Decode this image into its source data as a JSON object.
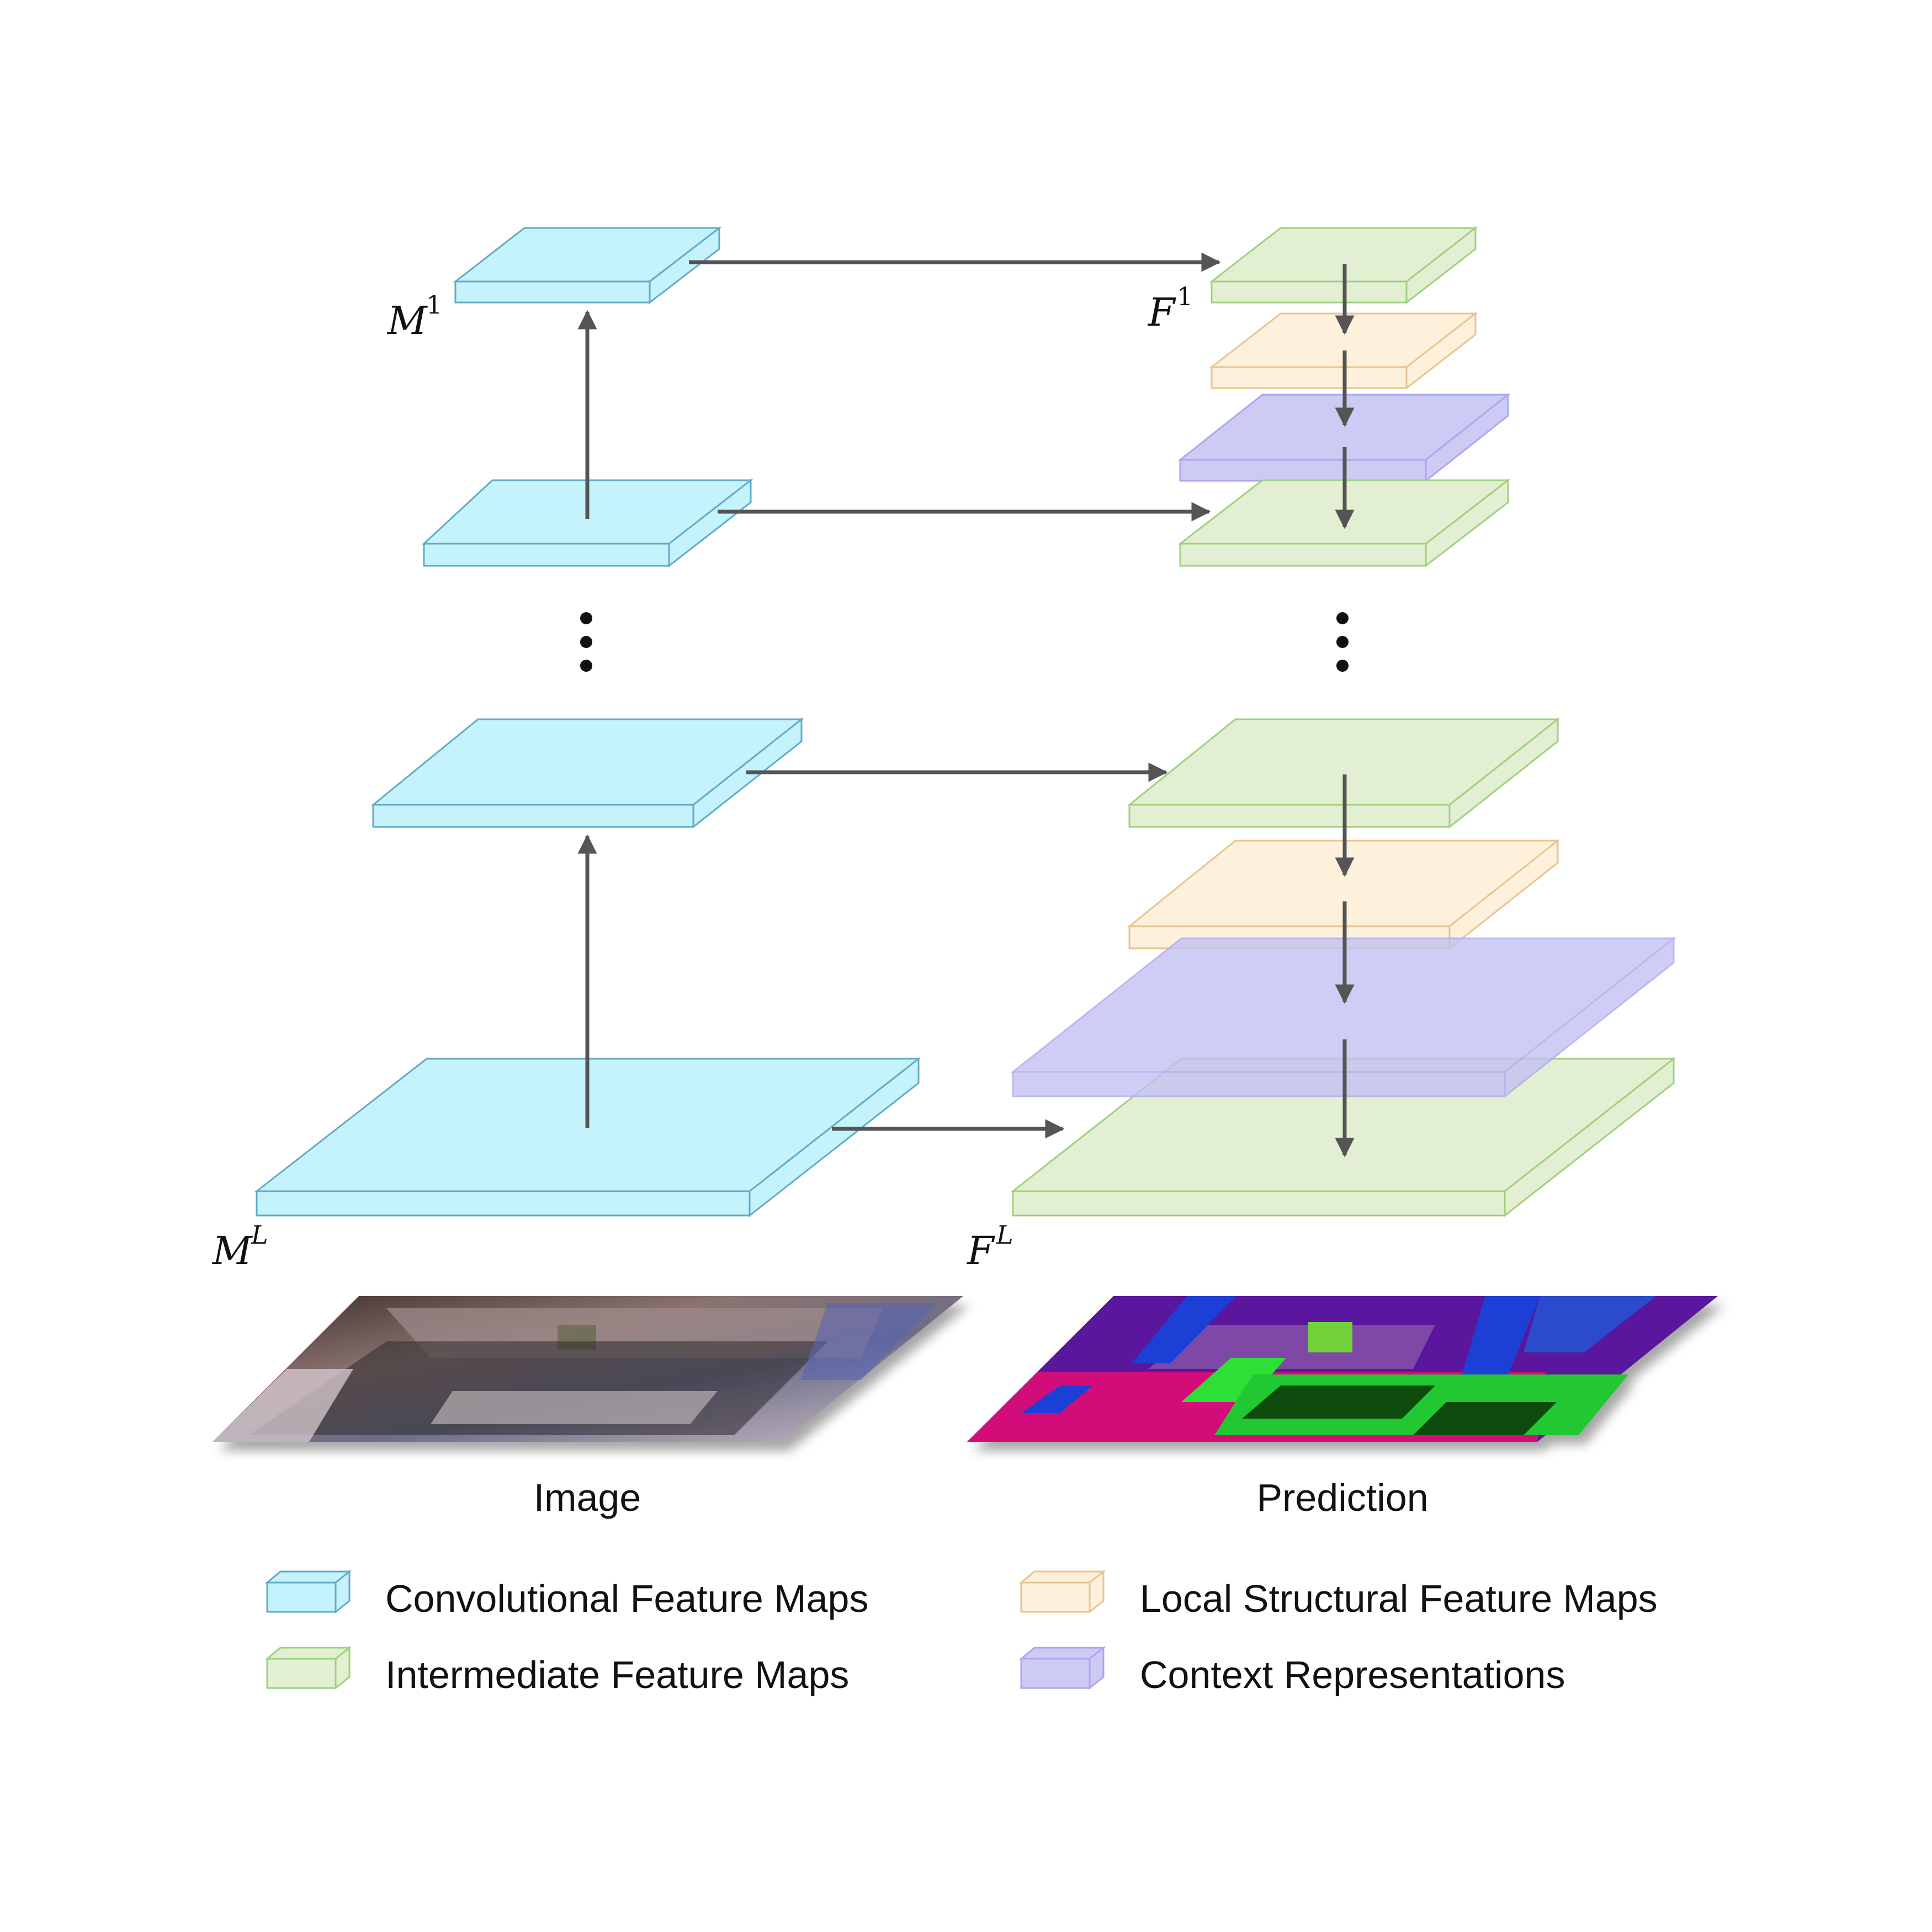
{
  "colors": {
    "conv": "#c5f3fb",
    "conv_edge": "#62aac6",
    "inter": "#e3efd2",
    "inter_edge": "#9fd07c",
    "local": "#fdf1dc",
    "local_edge": "#e8c48f",
    "context": "#cccbf4",
    "context_edge": "#a9a7ee",
    "arrow": "#555555"
  },
  "labels": {
    "m1_base": "M",
    "m1_sup": "1",
    "ml_base": "M",
    "ml_sup": "L",
    "f1_base": "F",
    "f1_sup": "1",
    "fl_base": "F",
    "fl_sup": "L"
  },
  "captions": {
    "image": "Image",
    "prediction": "Prediction"
  },
  "legend": [
    {
      "key": "conv",
      "label": "Convolutional Feature Maps"
    },
    {
      "key": "local",
      "label": "Local Structural Feature Maps"
    },
    {
      "key": "inter",
      "label": "Intermediate Feature Maps"
    },
    {
      "key": "context",
      "label": "Context Representations"
    }
  ]
}
